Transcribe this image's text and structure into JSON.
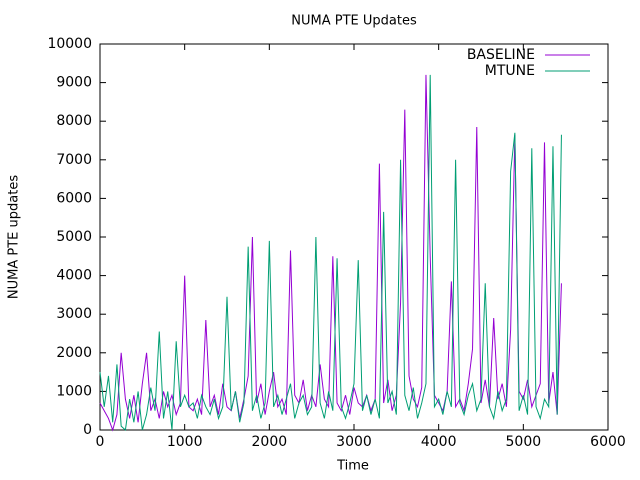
{
  "chart_data": {
    "type": "line",
    "title": "NUMA PTE Updates",
    "xlabel": "Time",
    "ylabel": "NUMA PTE updates",
    "xlim": [
      0,
      6000
    ],
    "xticks": [
      0,
      1000,
      2000,
      3000,
      4000,
      5000,
      6000
    ],
    "ylim": [
      0,
      10000
    ],
    "yticks": [
      0,
      1000,
      2000,
      3000,
      4000,
      5000,
      6000,
      7000,
      8000,
      9000,
      10000
    ],
    "legend": "top-right",
    "grid": false,
    "x": [
      0,
      50,
      100,
      150,
      200,
      250,
      300,
      350,
      400,
      450,
      500,
      550,
      600,
      650,
      700,
      750,
      800,
      850,
      900,
      950,
      1000,
      1050,
      1100,
      1150,
      1200,
      1250,
      1300,
      1350,
      1400,
      1450,
      1500,
      1550,
      1600,
      1650,
      1700,
      1750,
      1800,
      1850,
      1900,
      1950,
      2000,
      2050,
      2100,
      2150,
      2200,
      2250,
      2300,
      2350,
      2400,
      2450,
      2500,
      2550,
      2600,
      2650,
      2700,
      2750,
      2800,
      2850,
      2900,
      2950,
      3000,
      3050,
      3100,
      3150,
      3200,
      3250,
      3300,
      3350,
      3400,
      3450,
      3500,
      3550,
      3600,
      3650,
      3700,
      3750,
      3800,
      3850,
      3900,
      3950,
      4000,
      4050,
      4100,
      4150,
      4200,
      4250,
      4300,
      4350,
      4400,
      4450,
      4500,
      4550,
      4600,
      4650,
      4700,
      4750,
      4800,
      4850,
      4900,
      4950,
      5000,
      5050,
      5100,
      5150,
      5200,
      5250,
      5300,
      5350,
      5400,
      5450
    ],
    "series": [
      {
        "name": "BASELINE",
        "color": "#9400d3",
        "values": [
          700,
          500,
          300,
          0,
          400,
          2000,
          800,
          300,
          900,
          200,
          1200,
          2000,
          500,
          800,
          300,
          1000,
          600,
          900,
          400,
          700,
          4000,
          600,
          500,
          800,
          400,
          2850,
          600,
          900,
          400,
          1200,
          600,
          500,
          1000,
          300,
          800,
          1400,
          5000,
          700,
          1200,
          400,
          1000,
          1500,
          600,
          800,
          400,
          4650,
          900,
          700,
          1300,
          500,
          900,
          600,
          1700,
          800,
          600,
          4500,
          700,
          500,
          900,
          400,
          1100,
          700,
          600,
          900,
          500,
          800,
          6900,
          700,
          1300,
          500,
          900,
          3300,
          8300,
          1400,
          800,
          600,
          1100,
          9200,
          4500,
          900,
          700,
          500,
          1000,
          3850,
          600,
          800,
          500,
          1200,
          2100,
          7850,
          700,
          1300,
          600,
          2900,
          800,
          1200,
          600,
          2600,
          7650,
          1000,
          800,
          1300,
          600,
          900,
          1200,
          7450,
          700,
          1500,
          400,
          3800
        ]
      },
      {
        "name": "MTUNE",
        "color": "#009e73",
        "values": [
          1500,
          600,
          1400,
          200,
          1700,
          100,
          0,
          800,
          200,
          1000,
          0,
          400,
          1100,
          500,
          2550,
          300,
          1000,
          0,
          2300,
          600,
          900,
          600,
          700,
          300,
          900,
          600,
          400,
          800,
          300,
          600,
          3450,
          500,
          1000,
          200,
          700,
          4750,
          500,
          900,
          300,
          700,
          4900,
          600,
          900,
          400,
          800,
          1200,
          300,
          700,
          900,
          400,
          600,
          5000,
          700,
          300,
          1000,
          500,
          4450,
          600,
          300,
          700,
          1200,
          4400,
          500,
          900,
          400,
          800,
          300,
          5650,
          700,
          1000,
          400,
          7000,
          900,
          500,
          1100,
          300,
          700,
          1200,
          9200,
          600,
          800,
          400,
          1000,
          600,
          7000,
          700,
          400,
          900,
          1200,
          500,
          800,
          3800,
          600,
          300,
          1000,
          500,
          800,
          6700,
          7700,
          500,
          900,
          400,
          7300,
          600,
          300,
          800,
          600,
          7350,
          400,
          7650
        ]
      }
    ]
  }
}
